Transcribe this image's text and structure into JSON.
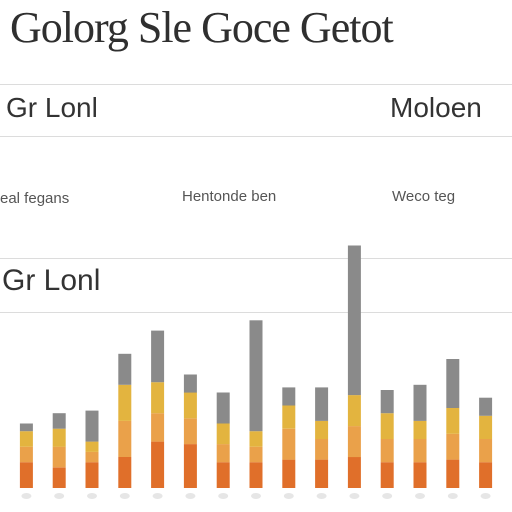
{
  "title": "Golorg Sle Goce Getot",
  "panels": {
    "top_left": "Gr Lonl",
    "top_right": "Moloen",
    "bottom_left": "Gr Lonl"
  },
  "sub_labels": [
    "eal fegans",
    "Hentonde ben",
    "Weco teg"
  ],
  "colors": {
    "gray": "#8a8a8a",
    "gold": "#e3b43f",
    "amber": "#eaa14a",
    "orange": "#e06f2a",
    "grid": "#dcdcdc"
  },
  "chart_data": {
    "type": "bar",
    "stacked": true,
    "grid": true,
    "categories": [
      "1",
      "2",
      "3",
      "4",
      "5",
      "6",
      "7",
      "8",
      "9",
      "10",
      "11",
      "12",
      "13",
      "14",
      "15"
    ],
    "series": [
      {
        "values": [
          10,
          8,
          10,
          12,
          18,
          17,
          10,
          10,
          11,
          11,
          12,
          10,
          10,
          11,
          10
        ]
      },
      {
        "values": [
          6,
          8,
          4,
          14,
          11,
          10,
          7,
          6,
          12,
          8,
          12,
          9,
          9,
          10,
          9
        ]
      },
      {
        "values": [
          6,
          7,
          4,
          14,
          12,
          10,
          8,
          6,
          9,
          7,
          12,
          10,
          7,
          10,
          9
        ]
      },
      {
        "values": [
          3,
          6,
          12,
          12,
          20,
          7,
          12,
          43,
          7,
          13,
          58,
          9,
          14,
          19,
          7
        ]
      }
    ],
    "ylim": [
      0,
      100
    ]
  }
}
